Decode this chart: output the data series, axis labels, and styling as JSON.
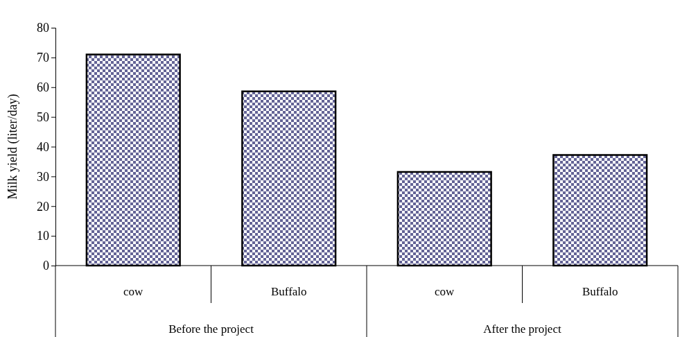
{
  "chart_data": {
    "type": "bar",
    "ylabel": "Milk yield (liter/day)",
    "categories": [
      "cow",
      "Buffalo",
      "cow",
      "Buffalo"
    ],
    "values": [
      71,
      58.6,
      31.5,
      37.2
    ],
    "color": "#646496",
    "ylim": [
      0,
      80
    ],
    "yticks": [
      0,
      10,
      20,
      30,
      40,
      50,
      60,
      70,
      80
    ],
    "annotations": [
      "Before the project",
      "After the project"
    ]
  }
}
